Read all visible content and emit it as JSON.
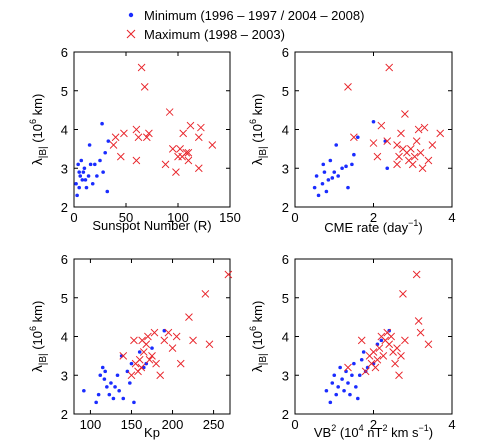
{
  "legend": {
    "entries": [
      {
        "label": "Minimum (1996 – 1997 / 2004 – 2008)",
        "color": "#1a2cff",
        "marker": "dot"
      },
      {
        "label": "Maximum (1998 – 2003)",
        "color": "#e8242a",
        "marker": "cross"
      }
    ]
  },
  "chart_data": [
    {
      "type": "scatter",
      "xlabel": "Sunspot Number (R)",
      "ylabel": "λ|B| (10^6 km)",
      "xlim": [
        0,
        150
      ],
      "ylim": [
        2,
        6
      ],
      "xticks": [
        0,
        50,
        100,
        150
      ],
      "yticks": [
        2,
        3,
        4,
        5,
        6
      ],
      "series": [
        {
          "name": "Minimum (1996 – 1997 / 2004 – 2008)",
          "marker": "dot",
          "color": "#1a2cff",
          "points": [
            [
              2,
              2.6
            ],
            [
              3,
              2.3
            ],
            [
              4,
              3.1
            ],
            [
              5,
              2.9
            ],
            [
              5,
              2.5
            ],
            [
              6,
              2.8
            ],
            [
              7,
              3.2
            ],
            [
              8,
              2.7
            ],
            [
              9,
              2.9
            ],
            [
              10,
              3.0
            ],
            [
              11,
              2.7
            ],
            [
              12,
              2.5
            ],
            [
              14,
              2.8
            ],
            [
              15,
              3.6
            ],
            [
              16,
              3.1
            ],
            [
              18,
              2.6
            ],
            [
              20,
              3.1
            ],
            [
              22,
              2.8
            ],
            [
              25,
              3.2
            ],
            [
              27,
              4.15
            ],
            [
              28,
              2.9
            ],
            [
              30,
              3.4
            ],
            [
              32,
              2.4
            ],
            [
              33,
              3.7
            ]
          ]
        },
        {
          "name": "Maximum (1998 – 2003)",
          "marker": "cross",
          "color": "#e8242a",
          "points": [
            [
              38,
              3.6
            ],
            [
              40,
              3.8
            ],
            [
              45,
              3.3
            ],
            [
              48,
              3.9
            ],
            [
              60,
              3.2
            ],
            [
              60,
              4.0
            ],
            [
              62,
              3.8
            ],
            [
              65,
              5.6
            ],
            [
              68,
              5.1
            ],
            [
              70,
              3.8
            ],
            [
              72,
              3.9
            ],
            [
              88,
              3.1
            ],
            [
              92,
              4.45
            ],
            [
              95,
              3.5
            ],
            [
              98,
              2.9
            ],
            [
              100,
              3.3
            ],
            [
              102,
              3.5
            ],
            [
              104,
              3.3
            ],
            [
              105,
              3.9
            ],
            [
              108,
              3.4
            ],
            [
              110,
              3.4
            ],
            [
              110,
              3.2
            ],
            [
              112,
              4.1
            ],
            [
              120,
              3.8
            ],
            [
              122,
              4.05
            ],
            [
              133,
              3.6
            ],
            [
              120,
              3.0
            ]
          ]
        }
      ]
    },
    {
      "type": "scatter",
      "xlabel": "CME rate (day⁻¹)",
      "ylabel": "λ|B| (10^6 km)",
      "xlim": [
        0,
        4
      ],
      "ylim": [
        2,
        6
      ],
      "xticks": [
        0,
        2,
        4
      ],
      "yticks": [
        2,
        3,
        4,
        5,
        6
      ],
      "series": [
        {
          "name": "Minimum (1996 – 1997 / 2004 – 2008)",
          "marker": "dot",
          "color": "#1a2cff",
          "points": [
            [
              0.5,
              2.5
            ],
            [
              0.55,
              2.8
            ],
            [
              0.6,
              2.3
            ],
            [
              0.7,
              2.6
            ],
            [
              0.72,
              3.1
            ],
            [
              0.75,
              2.9
            ],
            [
              0.8,
              2.4
            ],
            [
              0.85,
              2.7
            ],
            [
              0.9,
              3.2
            ],
            [
              0.95,
              2.75
            ],
            [
              1.0,
              2.9
            ],
            [
              1.05,
              3.6
            ],
            [
              1.1,
              2.8
            ],
            [
              1.2,
              3.0
            ],
            [
              1.3,
              3.05
            ],
            [
              1.35,
              2.5
            ],
            [
              1.45,
              3.1
            ],
            [
              1.5,
              3.35
            ],
            [
              1.6,
              3.8
            ],
            [
              2.0,
              4.2
            ],
            [
              2.3,
              3.7
            ],
            [
              2.35,
              3.0
            ]
          ]
        },
        {
          "name": "Maximum (1998 – 2003)",
          "marker": "cross",
          "color": "#e8242a",
          "points": [
            [
              1.35,
              5.1
            ],
            [
              1.5,
              3.8
            ],
            [
              2.0,
              3.65
            ],
            [
              2.1,
              3.3
            ],
            [
              2.2,
              4.1
            ],
            [
              2.35,
              3.7
            ],
            [
              2.4,
              5.6
            ],
            [
              2.6,
              3.6
            ],
            [
              2.65,
              3.3
            ],
            [
              2.7,
              3.9
            ],
            [
              2.75,
              3.5
            ],
            [
              2.8,
              4.4
            ],
            [
              2.85,
              3.4
            ],
            [
              2.9,
              3.2
            ],
            [
              2.95,
              3.5
            ],
            [
              3.0,
              3.1
            ],
            [
              3.05,
              3.3
            ],
            [
              3.1,
              3.7
            ],
            [
              3.15,
              4.0
            ],
            [
              3.2,
              3.4
            ],
            [
              3.25,
              3.0
            ],
            [
              3.3,
              4.05
            ],
            [
              3.4,
              3.2
            ],
            [
              3.5,
              3.6
            ],
            [
              3.7,
              3.9
            ],
            [
              2.6,
              3.1
            ]
          ]
        }
      ]
    },
    {
      "type": "scatter",
      "xlabel": "Kp",
      "ylabel": "λ|B| (10^6 km)",
      "xlim": [
        80,
        270
      ],
      "ylim": [
        2,
        6
      ],
      "xticks": [
        100,
        150,
        200,
        250
      ],
      "yticks": [
        2,
        3,
        4,
        5,
        6
      ],
      "series": [
        {
          "name": "Minimum (1996 – 1997 / 2004 – 2008)",
          "marker": "dot",
          "color": "#1a2cff",
          "points": [
            [
              92,
              2.6
            ],
            [
              107,
              2.3
            ],
            [
              110,
              2.5
            ],
            [
              112,
              3.0
            ],
            [
              115,
              3.2
            ],
            [
              117,
              2.9
            ],
            [
              118,
              3.1
            ],
            [
              120,
              2.7
            ],
            [
              123,
              2.5
            ],
            [
              125,
              2.8
            ],
            [
              128,
              2.4
            ],
            [
              130,
              2.7
            ],
            [
              133,
              3.0
            ],
            [
              135,
              2.6
            ],
            [
              138,
              3.5
            ],
            [
              140,
              2.4
            ],
            [
              145,
              3.1
            ],
            [
              148,
              2.8
            ],
            [
              150,
              3.3
            ],
            [
              153,
              2.3
            ],
            [
              160,
              3.6
            ],
            [
              165,
              3.2
            ],
            [
              168,
              3.3
            ],
            [
              175,
              3.7
            ],
            [
              190,
              4.15
            ]
          ]
        },
        {
          "name": "Maximum (1998 – 2003)",
          "marker": "cross",
          "color": "#e8242a",
          "points": [
            [
              140,
              3.5
            ],
            [
              150,
              3.0
            ],
            [
              153,
              3.9
            ],
            [
              155,
              3.3
            ],
            [
              158,
              3.1
            ],
            [
              160,
              3.4
            ],
            [
              162,
              3.2
            ],
            [
              163,
              3.9
            ],
            [
              165,
              3.6
            ],
            [
              168,
              3.8
            ],
            [
              170,
              4.0
            ],
            [
              172,
              3.4
            ],
            [
              175,
              3.5
            ],
            [
              178,
              4.1
            ],
            [
              180,
              3.3
            ],
            [
              185,
              3.0
            ],
            [
              190,
              3.9
            ],
            [
              195,
              4.1
            ],
            [
              200,
              3.7
            ],
            [
              205,
              4.0
            ],
            [
              220,
              4.5
            ],
            [
              225,
              3.9
            ],
            [
              240,
              5.1
            ],
            [
              245,
              3.8
            ],
            [
              268,
              5.6
            ],
            [
              210,
              3.3
            ]
          ]
        }
      ]
    },
    {
      "type": "scatter",
      "xlabel": "VB² (10⁴ nT² km s⁻¹)",
      "ylabel": "λ|B| (10^6 km)",
      "xlim": [
        0,
        4
      ],
      "ylim": [
        2,
        6
      ],
      "xticks": [
        0,
        2,
        4
      ],
      "yticks": [
        2,
        3,
        4,
        5,
        6
      ],
      "series": [
        {
          "name": "Minimum (1996 – 1997 / 2004 – 2008)",
          "marker": "dot",
          "color": "#1a2cff",
          "points": [
            [
              0.8,
              2.6
            ],
            [
              0.9,
              2.3
            ],
            [
              0.95,
              2.8
            ],
            [
              1.0,
              3.0
            ],
            [
              1.05,
              2.5
            ],
            [
              1.1,
              2.7
            ],
            [
              1.15,
              3.2
            ],
            [
              1.2,
              2.9
            ],
            [
              1.25,
              2.6
            ],
            [
              1.3,
              3.1
            ],
            [
              1.35,
              2.8
            ],
            [
              1.4,
              2.5
            ],
            [
              1.45,
              3.0
            ],
            [
              1.5,
              3.3
            ],
            [
              1.55,
              2.7
            ],
            [
              1.6,
              2.4
            ],
            [
              1.65,
              3.0
            ],
            [
              1.7,
              3.4
            ],
            [
              1.75,
              3.6
            ],
            [
              1.8,
              3.1
            ],
            [
              1.85,
              3.2
            ],
            [
              2.0,
              3.3
            ],
            [
              2.1,
              3.8
            ],
            [
              2.2,
              3.9
            ],
            [
              2.4,
              4.15
            ]
          ]
        },
        {
          "name": "Maximum (1998 – 2003)",
          "marker": "cross",
          "color": "#e8242a",
          "points": [
            [
              1.35,
              3.2
            ],
            [
              1.7,
              3.9
            ],
            [
              1.8,
              3.1
            ],
            [
              1.9,
              3.5
            ],
            [
              1.95,
              3.3
            ],
            [
              2.0,
              3.6
            ],
            [
              2.05,
              3.2
            ],
            [
              2.1,
              3.4
            ],
            [
              2.15,
              3.7
            ],
            [
              2.2,
              4.0
            ],
            [
              2.25,
              3.5
            ],
            [
              2.3,
              3.9
            ],
            [
              2.35,
              4.1
            ],
            [
              2.4,
              3.8
            ],
            [
              2.45,
              4.0
            ],
            [
              2.5,
              3.6
            ],
            [
              2.55,
              3.3
            ],
            [
              2.6,
              3.7
            ],
            [
              2.7,
              3.5
            ],
            [
              2.75,
              5.1
            ],
            [
              2.8,
              3.9
            ],
            [
              3.1,
              5.6
            ],
            [
              3.15,
              4.4
            ],
            [
              3.2,
              4.1
            ],
            [
              3.4,
              3.8
            ],
            [
              2.65,
              3.0
            ]
          ]
        }
      ]
    }
  ]
}
